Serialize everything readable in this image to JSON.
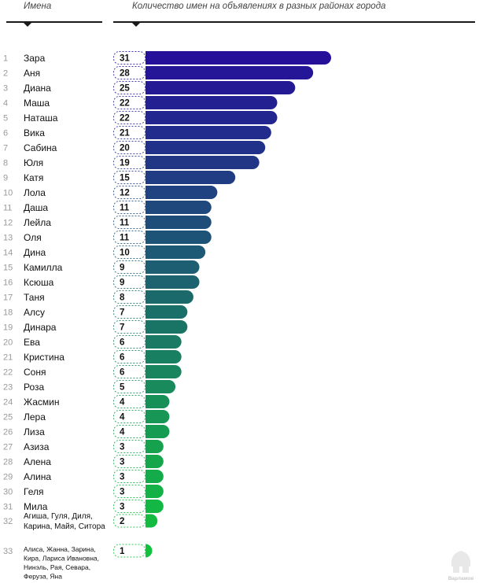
{
  "header": {
    "names_title": "Имена",
    "chart_title": "Количество имен на объявлениях в разных районах города"
  },
  "logo": {
    "text": "Варламов"
  },
  "chart_data": {
    "type": "bar",
    "orientation": "horizontal",
    "title": "Количество имен на объявлениях в разных районах города",
    "category_header": "Имена",
    "grid": false,
    "legend": "none",
    "xlim": [
      0,
      31
    ],
    "ranks": [
      "1",
      "2",
      "3",
      "4",
      "5",
      "6",
      "7",
      "8",
      "9",
      "10",
      "11",
      "12",
      "13",
      "14",
      "15",
      "16",
      "17",
      "18",
      "19",
      "20",
      "21",
      "22",
      "23",
      "24",
      "25",
      "26",
      "27",
      "28",
      "29",
      "30",
      "31",
      "32",
      "33"
    ],
    "categories": [
      "Зара",
      "Аня",
      "Диана",
      "Маша",
      "Наташа",
      "Вика",
      "Сабина",
      "Юля",
      "Катя",
      "Лола",
      "Даша",
      "Лейла",
      "Оля",
      "Дина",
      "Камилла",
      "Ксюша",
      "Таня",
      "Алсу",
      "Динара",
      "Ева",
      "Кристина",
      "Соня",
      "Роза",
      "Жасмин",
      "Лера",
      "Лиза",
      "Азиза",
      "Алена",
      "Алина",
      "Геля",
      "Мила",
      "Агиша, Гуля, Диля, Карина, Майя, Ситора",
      "Алиса, Жанна, Зарина, Кира, Лариса Ивановна, Нинэль, Рая, Севара, Феруза, Яна"
    ],
    "values": [
      31,
      28,
      25,
      22,
      22,
      21,
      20,
      19,
      15,
      12,
      11,
      11,
      11,
      10,
      9,
      9,
      8,
      7,
      7,
      6,
      6,
      6,
      5,
      4,
      4,
      4,
      3,
      3,
      3,
      3,
      3,
      2,
      1
    ],
    "color_start": "#25109a",
    "color_end": "#12c23e"
  }
}
